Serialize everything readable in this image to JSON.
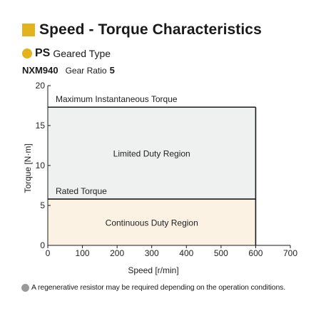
{
  "header": {
    "title": "Speed - Torque Characteristics",
    "type_code": "PS",
    "type_label": "Geared Type",
    "model": "NXM940",
    "gear_ratio_label": "Gear Ratio",
    "gear_ratio_value": "5"
  },
  "colors": {
    "accent": "#e3b21c",
    "limited_region_fill": "#eff1f1",
    "continuous_region_fill": "#fcf2e4",
    "note_dot": "#9a9a9a"
  },
  "chart_data": {
    "type": "area",
    "title": "",
    "xlabel": "Speed [r/min]",
    "ylabel": "Torque [N·m]",
    "xlim": [
      0,
      700
    ],
    "ylim": [
      0,
      20
    ],
    "x_ticks": [
      0,
      100,
      200,
      300,
      400,
      500,
      600,
      700
    ],
    "y_ticks": [
      0,
      5,
      10,
      15,
      20
    ],
    "grid": false,
    "series": [
      {
        "name": "Maximum Instantaneous Torque",
        "x": [
          0,
          600
        ],
        "y": [
          17.3,
          17.3
        ]
      },
      {
        "name": "Rated Torque",
        "x": [
          0,
          600
        ],
        "y": [
          5.8,
          5.8
        ]
      }
    ],
    "regions": [
      {
        "label": "Limited Duty Region",
        "x": [
          0,
          600
        ],
        "y": [
          5.8,
          17.3
        ]
      },
      {
        "label": "Continuous Duty Region",
        "x": [
          0,
          600
        ],
        "y": [
          0,
          5.8
        ]
      }
    ]
  },
  "note": {
    "text": "A regenerative resistor may be required depending on the operation conditions."
  }
}
